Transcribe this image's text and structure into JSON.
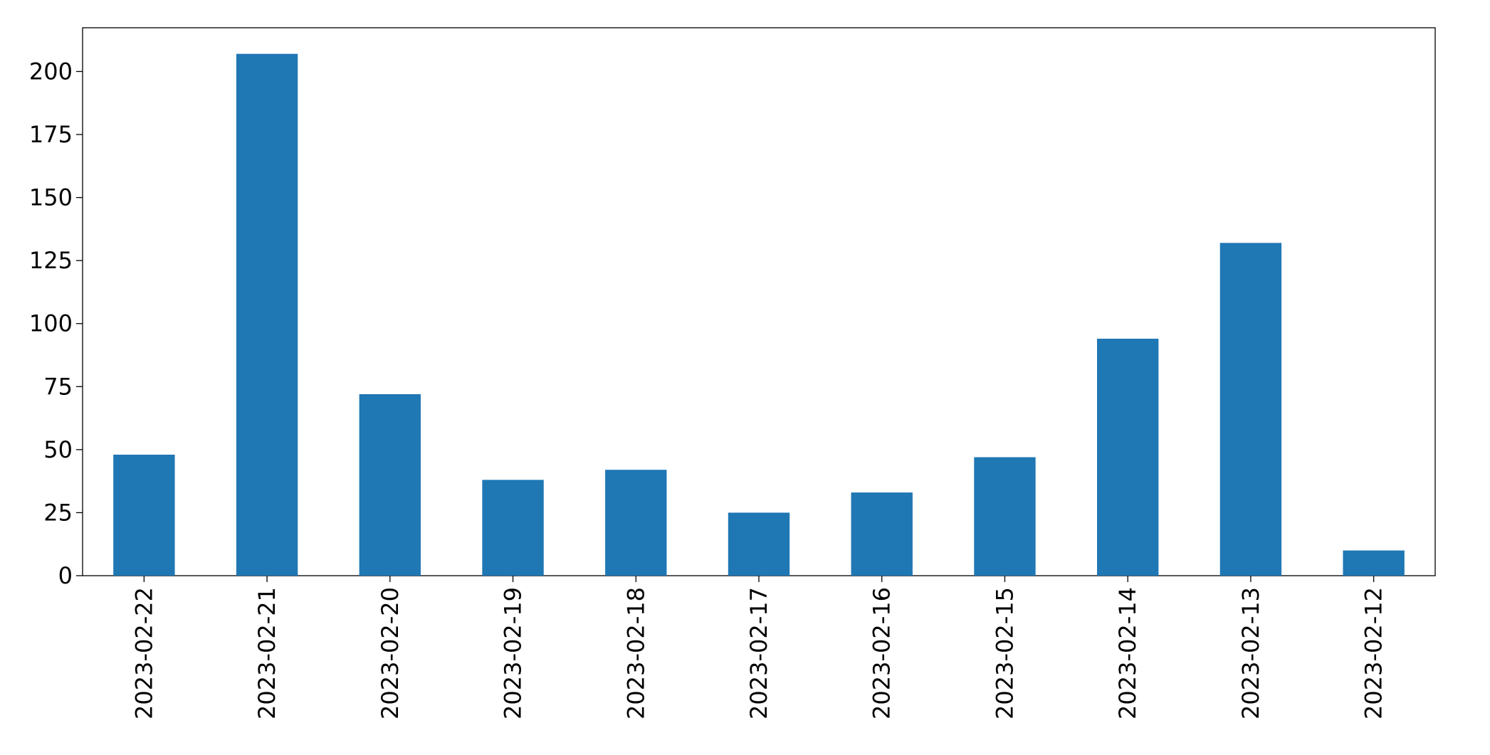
{
  "chart_data": {
    "type": "bar",
    "categories": [
      "2023-02-22",
      "2023-02-21",
      "2023-02-20",
      "2023-02-19",
      "2023-02-18",
      "2023-02-17",
      "2023-02-16",
      "2023-02-15",
      "2023-02-14",
      "2023-02-13",
      "2023-02-12"
    ],
    "values": [
      48,
      207,
      72,
      38,
      42,
      25,
      33,
      47,
      94,
      132,
      10
    ],
    "color": "#1f77b4",
    "ylim": [
      0,
      217.35
    ],
    "yticks": [
      0,
      25,
      50,
      75,
      100,
      125,
      150,
      175,
      200
    ],
    "grid": false
  }
}
